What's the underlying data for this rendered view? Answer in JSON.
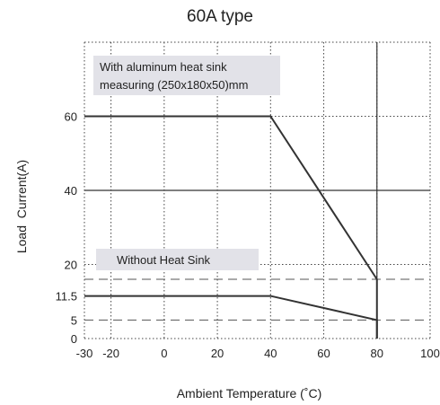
{
  "chart_data": {
    "type": "line",
    "title": "60A type",
    "xlabel": "Ambient Temperature (˚C)",
    "ylabel": "Load  Current(A)",
    "xlim": [
      -30,
      100
    ],
    "ylim": [
      0,
      80
    ],
    "x_ticks": [
      -30,
      -20,
      0,
      20,
      40,
      60,
      80,
      100
    ],
    "x_tick_labels": [
      "-30",
      "-20",
      "0",
      "20",
      "40",
      "60",
      "80",
      "100"
    ],
    "x_grid": [
      -30,
      -20,
      0,
      20,
      40,
      60,
      80,
      100
    ],
    "y_ticks": [
      0,
      5,
      11.5,
      20,
      40,
      60
    ],
    "y_tick_labels": [
      "0",
      "5",
      "11.5",
      "20",
      "40",
      "60"
    ],
    "y_grid": [
      0,
      20,
      40,
      60,
      80
    ],
    "grid": "dotted",
    "series": [
      {
        "x": [
          -30,
          40,
          80,
          80
        ],
        "y": [
          60,
          60,
          16,
          0
        ],
        "color": "#333333"
      },
      {
        "x": [
          -30,
          40,
          80,
          80
        ],
        "y": [
          11.5,
          11.5,
          5,
          0
        ],
        "color": "#333333"
      }
    ],
    "reference_lines": [
      {
        "axis": "y",
        "value": 40,
        "style": "solid",
        "color": "#333333"
      },
      {
        "axis": "y",
        "value": 16,
        "style": "dashed",
        "color": "#555555"
      },
      {
        "axis": "y",
        "value": 5,
        "style": "dashed",
        "color": "#555555"
      },
      {
        "axis": "x",
        "value": 80,
        "style": "solid",
        "color": "#333333"
      }
    ],
    "annotations": [
      {
        "lines": [
          "With aluminum heat sink",
          "measuring (250x180x50)mm"
        ],
        "box_color": "#e2e2e8"
      },
      {
        "lines": [
          "Without Heat Sink"
        ],
        "box_color": "#e2e2e8"
      }
    ]
  }
}
